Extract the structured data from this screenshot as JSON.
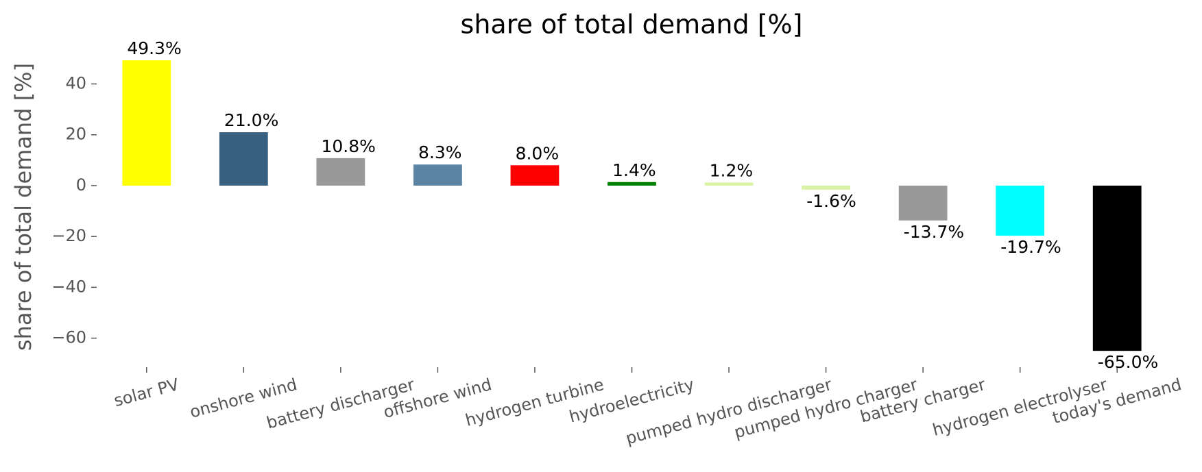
{
  "chart_data": {
    "type": "bar",
    "title": "share of total demand [%]",
    "y_label": "share of total demand [%]",
    "categories": [
      "solar PV",
      "onshore wind",
      "battery discharger",
      "offshore wind",
      "hydrogen turbine",
      "hydroelectricity",
      "pumped hydro discharger",
      "pumped hydro charger",
      "battery charger",
      "hydrogen electrolyser",
      "today's demand"
    ],
    "values": [
      49.3,
      21.0,
      10.8,
      8.3,
      8.0,
      1.4,
      1.2,
      -1.6,
      -13.7,
      -19.7,
      -65.0
    ],
    "value_labels": [
      "49.3%",
      "21.0%",
      "10.8%",
      "8.3%",
      "8.0%",
      "1.4%",
      "1.2%",
      "-1.6%",
      "-13.7%",
      "-19.7%",
      "-65.0%"
    ],
    "colors": [
      "#ffff00",
      "#386080",
      "#999999",
      "#5b83a3",
      "#ff0000",
      "#007f00",
      "#d8f3a5",
      "#d8f3a5",
      "#999999",
      "#00ffff",
      "#000000"
    ],
    "ylim": [
      -69,
      52
    ],
    "yticks": [
      {
        "value": -60,
        "label": "−60"
      },
      {
        "value": -40,
        "label": "−40"
      },
      {
        "value": -20,
        "label": "−20"
      },
      0,
      20,
      40
    ],
    "grid": false
  }
}
